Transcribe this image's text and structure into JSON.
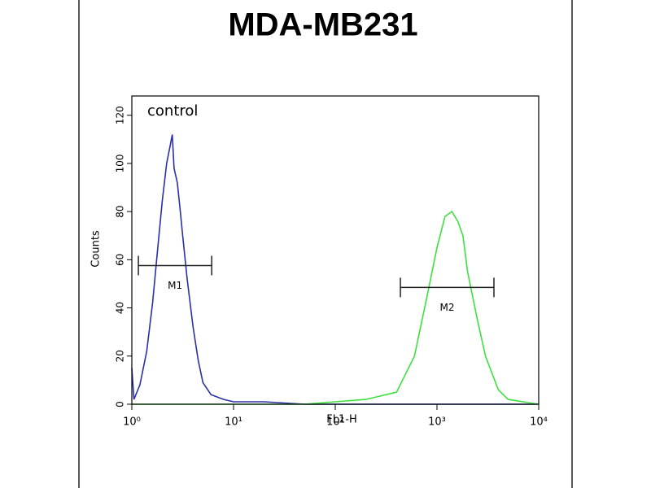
{
  "chart_data": {
    "type": "line",
    "title": "MDA-MB231",
    "x_label": "FL1-H",
    "y_label": "Counts",
    "annotation": "control",
    "log_x": true,
    "xlim": [
      1,
      10000
    ],
    "xticks": [
      {
        "value": 1,
        "label": "10⁰"
      },
      {
        "value": 10,
        "label": "10¹"
      },
      {
        "value": 100,
        "label": "10²"
      },
      {
        "value": 1000,
        "label": "10³"
      },
      {
        "value": 10000,
        "label": "10⁴"
      }
    ],
    "ylim": [
      0,
      128
    ],
    "yticks": [
      0,
      20,
      40,
      60,
      80,
      100,
      120
    ],
    "series": [
      {
        "color": "#2b2fa8",
        "x": [
          1,
          1.05,
          1.2,
          1.4,
          1.6,
          1.8,
          2.0,
          2.2,
          2.4,
          2.5,
          2.6,
          2.8,
          3.0,
          3.2,
          3.5,
          4,
          4.5,
          5,
          6,
          8,
          10,
          20,
          50,
          100,
          1000,
          10000
        ],
        "values": [
          15,
          2,
          8,
          22,
          42,
          65,
          85,
          100,
          108,
          112,
          98,
          92,
          80,
          68,
          52,
          32,
          18,
          9,
          4,
          2,
          1,
          1,
          0,
          0,
          0,
          0
        ]
      },
      {
        "color": "#3ee03e",
        "x": [
          1,
          10,
          50,
          100,
          200,
          400,
          600,
          800,
          1000,
          1200,
          1400,
          1600,
          1800,
          2000,
          2500,
          3000,
          4000,
          5000,
          7000,
          10000
        ],
        "values": [
          0,
          0,
          0,
          1,
          2,
          5,
          20,
          45,
          65,
          78,
          80,
          76,
          70,
          55,
          35,
          20,
          6,
          2,
          1,
          0
        ]
      }
    ],
    "markers": [
      {
        "label": "M1",
        "x1": 1.16,
        "x2": 6.1,
        "y": 57.6
      },
      {
        "label": "M2",
        "x1": 437,
        "x2": 3630,
        "y": 48.5
      }
    ]
  }
}
